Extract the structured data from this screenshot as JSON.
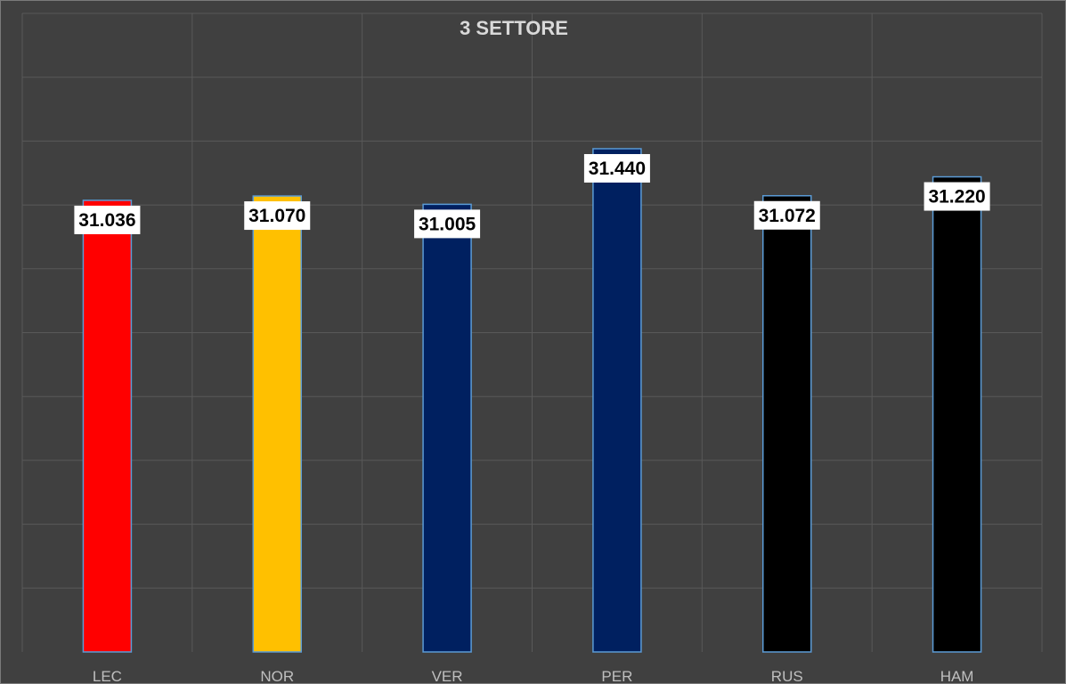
{
  "chart_data": {
    "type": "bar",
    "title": "3 SETTORE",
    "xlabel": "",
    "ylabel": "",
    "categories": [
      "LEC",
      "NOR",
      "VER",
      "PER",
      "RUS",
      "HAM"
    ],
    "values": [
      31.036,
      31.07,
      31.005,
      31.44,
      31.072,
      31.22
    ],
    "data_labels": [
      "31.036",
      "31.070",
      "31.005",
      "31.440",
      "31.072",
      "31.220"
    ],
    "colors": [
      "#ff0000",
      "#ffc000",
      "#002060",
      "#002060",
      "#000000",
      "#000000"
    ],
    "ylim": [
      27.5,
      32.5
    ],
    "grid": true,
    "legend": "none"
  }
}
